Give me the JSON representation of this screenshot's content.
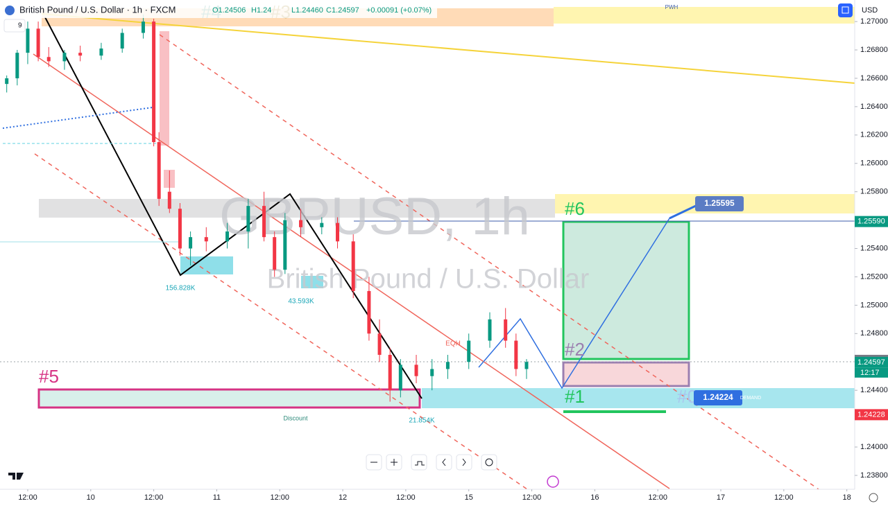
{
  "header": {
    "symbol": "British Pound / U.S. Dollar · 1h · FXCM",
    "open": "O1.24506",
    "high": "H1.24",
    "low": "L1.24460",
    "close": "C1.24597",
    "change": "+0.00091 (+0.07%)",
    "interval": "9",
    "currency": "USD"
  },
  "watermark": {
    "ticker": "GBPUSD, 1h",
    "name": "British Pound / U.S. Dollar"
  },
  "annotations": {
    "n0": "#0",
    "n1": "#1",
    "n2": "#2",
    "n3": "#3",
    "n4": "#4",
    "n5": "#5",
    "n6": "#6",
    "vol1": "156.828K",
    "vol2": "43.593K",
    "vol3": "21.854K",
    "discount": "Discount",
    "eqh": "EQH",
    "pwh": "PWH",
    "demand": "DEMAND",
    "target": "1.25595",
    "entry": "1.24224"
  },
  "price_labels": [
    {
      "value": 1.2559,
      "label": "1.25590",
      "color": "#089981"
    },
    {
      "value": 1.24611,
      "label": "1.24611",
      "color": "#787b86"
    },
    {
      "value": 1.24597,
      "label": "1.24597",
      "color": "#089981"
    },
    {
      "value": 1.24228,
      "label": "1.24228",
      "color": "#f23645"
    }
  ],
  "countdown": "12:17",
  "chart_data": {
    "type": "candlestick",
    "ylim": [
      1.23702,
      1.27152
    ],
    "xlim": [
      -5.28,
      157.5
    ],
    "yticks": [
      {
        "value": 1.27,
        "label": "1.27000"
      },
      {
        "value": 1.268,
        "label": "1.26800"
      },
      {
        "value": 1.266,
        "label": "1.26600"
      },
      {
        "value": 1.264,
        "label": "1.26400"
      },
      {
        "value": 1.262,
        "label": "1.26200"
      },
      {
        "value": 1.26,
        "label": "1.26000"
      },
      {
        "value": 1.258,
        "label": "1.25800"
      },
      {
        "value": 1.254,
        "label": "1.25400"
      },
      {
        "value": 1.252,
        "label": "1.25200"
      },
      {
        "value": 1.25,
        "label": "1.25000"
      },
      {
        "value": 1.248,
        "label": "1.24800"
      },
      {
        "value": 1.244,
        "label": "1.24400"
      },
      {
        "value": 1.24,
        "label": "1.24000"
      },
      {
        "value": 1.238,
        "label": "1.23800"
      }
    ],
    "xticks": [
      {
        "value": 0,
        "label": "12:00"
      },
      {
        "value": 12,
        "label": "10"
      },
      {
        "value": 24,
        "label": "12:00"
      },
      {
        "value": 36,
        "label": "11"
      },
      {
        "value": 48,
        "label": "12:00"
      },
      {
        "value": 60,
        "label": "12"
      },
      {
        "value": 72,
        "label": "12:00"
      },
      {
        "value": 84,
        "label": "15"
      },
      {
        "value": 96,
        "label": "12:00"
      },
      {
        "value": 108,
        "label": "16"
      },
      {
        "value": 120,
        "label": "12:00"
      },
      {
        "value": 132,
        "label": "17"
      },
      {
        "value": 144,
        "label": "12:00"
      },
      {
        "value": 156,
        "label": "18"
      }
    ],
    "up_color": "#089981",
    "down_color": "#f23645",
    "x": [
      -4,
      -2,
      0,
      2,
      4,
      7,
      10,
      14,
      18,
      22,
      24,
      25,
      27,
      29,
      31,
      34,
      38,
      42,
      45,
      47,
      49,
      52,
      56,
      59,
      62,
      65,
      67,
      69,
      71,
      74,
      77,
      80,
      84,
      88,
      91,
      93,
      95
    ],
    "open": [
      1.2656,
      1.266,
      1.2678,
      1.2695,
      1.2675,
      1.2672,
      1.2678,
      1.2676,
      1.2681,
      1.2692,
      1.27,
      1.2615,
      1.258,
      1.2568,
      1.254,
      1.2548,
      1.2545,
      1.2552,
      1.257,
      1.2548,
      1.2525,
      1.256,
      1.2555,
      1.2558,
      1.2545,
      1.251,
      1.248,
      1.2465,
      1.244,
      1.2458,
      1.245,
      1.2455,
      1.246,
      1.2475,
      1.249,
      1.2475,
      1.2455
    ],
    "high": [
      1.2662,
      1.268,
      1.27,
      1.27,
      1.2682,
      1.268,
      1.2683,
      1.2685,
      1.2695,
      1.2705,
      1.2702,
      1.2622,
      1.2595,
      1.2572,
      1.2552,
      1.2555,
      1.2558,
      1.2575,
      1.258,
      1.2552,
      1.2565,
      1.2568,
      1.2562,
      1.2562,
      1.255,
      1.252,
      1.249,
      1.247,
      1.2462,
      1.2465,
      1.2462,
      1.2465,
      1.248,
      1.2495,
      1.2498,
      1.248,
      1.2462
    ],
    "low": [
      1.265,
      1.2655,
      1.267,
      1.2672,
      1.2668,
      1.2666,
      1.2672,
      1.2673,
      1.2678,
      1.2688,
      1.2612,
      1.257,
      1.2565,
      1.2535,
      1.2528,
      1.2538,
      1.254,
      1.254,
      1.2545,
      1.252,
      1.2522,
      1.2548,
      1.255,
      1.254,
      1.2505,
      1.2475,
      1.246,
      1.2432,
      1.2435,
      1.2445,
      1.244,
      1.2448,
      1.2455,
      1.247,
      1.247,
      1.245,
      1.2448
    ],
    "close": [
      1.266,
      1.2678,
      1.2695,
      1.2675,
      1.2672,
      1.2678,
      1.2676,
      1.2681,
      1.2692,
      1.27,
      1.2615,
      1.2575,
      1.2568,
      1.254,
      1.2548,
      1.2545,
      1.2552,
      1.257,
      1.2548,
      1.2525,
      1.256,
      1.2555,
      1.2558,
      1.2545,
      1.251,
      1.248,
      1.2465,
      1.244,
      1.2458,
      1.245,
      1.2455,
      1.246,
      1.2475,
      1.249,
      1.2475,
      1.2455,
      1.246
    ]
  }
}
